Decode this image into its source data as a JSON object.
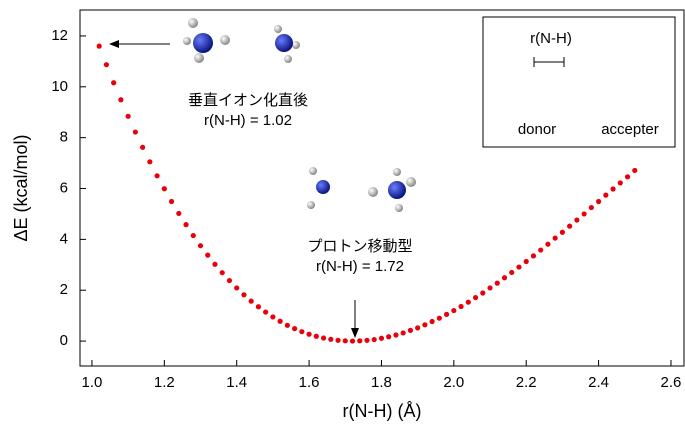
{
  "chart_data": {
    "type": "scatter",
    "x_label": "r(N-H) (Å)",
    "y_label": "ΔE (kcal/mol)",
    "x": [
      1.02,
      1.04,
      1.06,
      1.08,
      1.1,
      1.12,
      1.14,
      1.16,
      1.18,
      1.2,
      1.22,
      1.24,
      1.26,
      1.28,
      1.3,
      1.32,
      1.34,
      1.36,
      1.38,
      1.4,
      1.42,
      1.44,
      1.46,
      1.48,
      1.5,
      1.52,
      1.54,
      1.56,
      1.58,
      1.6,
      1.62,
      1.64,
      1.66,
      1.68,
      1.7,
      1.72,
      1.74,
      1.76,
      1.78,
      1.8,
      1.82,
      1.84,
      1.86,
      1.88,
      1.9,
      1.92,
      1.94,
      1.96,
      1.98,
      2.0,
      2.02,
      2.04,
      2.06,
      2.08,
      2.1,
      2.12,
      2.14,
      2.16,
      2.18,
      2.2,
      2.22,
      2.24,
      2.26,
      2.28,
      2.3,
      2.32,
      2.34,
      2.36,
      2.38,
      2.4,
      2.42,
      2.44,
      2.46,
      2.48,
      2.5
    ],
    "series": [
      {
        "color": "#e8000b",
        "values": [
          11.6,
          10.87,
          10.16,
          9.49,
          8.84,
          8.22,
          7.62,
          7.05,
          6.5,
          5.99,
          5.49,
          5.02,
          4.58,
          4.15,
          3.75,
          3.38,
          3.02,
          2.69,
          2.38,
          2.09,
          1.82,
          1.57,
          1.35,
          1.14,
          0.95,
          0.78,
          0.62,
          0.49,
          0.37,
          0.27,
          0.19,
          0.12,
          0.07,
          0.03,
          0.01,
          0,
          0.01,
          0.03,
          0.06,
          0.11,
          0.17,
          0.24,
          0.32,
          0.42,
          0.52,
          0.64,
          0.77,
          0.9,
          1.05,
          1.2,
          1.36,
          1.53,
          1.71,
          1.89,
          2.09,
          2.28,
          2.49,
          2.7,
          2.91,
          3.13,
          3.35,
          3.58,
          3.81,
          4.05,
          4.28,
          4.52,
          4.76,
          5.0,
          5.25,
          5.49,
          5.74,
          5.98,
          6.22,
          6.46,
          6.71
        ]
      }
    ],
    "xlim": [
      0.967,
      2.636
    ],
    "ylim": [
      -0.98,
      13.02
    ],
    "xticks": [
      {
        "value": 1.0,
        "label": "1.0"
      },
      1.2,
      1.4,
      1.6,
      1.8,
      {
        "value": 2.0,
        "label": "2.0"
      },
      2.2,
      2.4,
      2.6
    ],
    "yticks": [
      0,
      2,
      4,
      6,
      8,
      10,
      12
    ],
    "annotations": [
      "垂直イオン化直後",
      "r(N-H) = 1.02",
      "プロトン移動型",
      "r(N-H) = 1.72"
    ],
    "inset": {
      "label": "r(N-H)",
      "donor": "donor",
      "acceptor": "accepter"
    }
  }
}
